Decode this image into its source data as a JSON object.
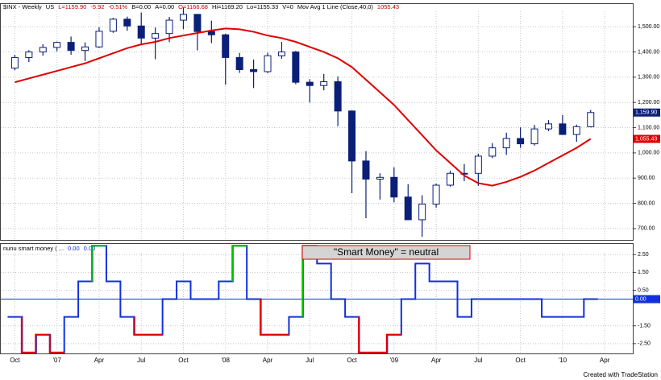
{
  "chart_data": [
    {
      "type": "candlestick",
      "header": [
        {
          "text": "$INX - Weekly",
          "color": "#000000"
        },
        {
          "text": "US",
          "color": "#000000"
        },
        {
          "text": "L=1159.90",
          "color": "#c00000"
        },
        {
          "text": "-5.92",
          "color": "#c00000"
        },
        {
          "text": "-0.51%",
          "color": "#c00000"
        },
        {
          "text": "B=0.00",
          "color": "#000000"
        },
        {
          "text": "A=0.00",
          "color": "#000000"
        },
        {
          "text": "O=1166.68",
          "color": "#c00000"
        },
        {
          "text": "Hi=1169.20",
          "color": "#000000"
        },
        {
          "text": "Lo=1155.33",
          "color": "#000000"
        },
        {
          "text": "V=0",
          "color": "#000000"
        },
        {
          "text": "Mov Avg 1 Line (Close,40,0)",
          "color": "#000000"
        },
        {
          "text": "1055.43",
          "color": "#c00000"
        }
      ],
      "x": [
        "2006-10",
        "2006-11",
        "2006-12",
        "2007-01",
        "2007-02",
        "2007-03",
        "2007-04",
        "2007-05",
        "2007-06",
        "2007-07",
        "2007-08",
        "2007-09",
        "2007-10",
        "2007-11",
        "2007-12",
        "2008-01",
        "2008-02",
        "2008-03",
        "2008-04",
        "2008-05",
        "2008-06",
        "2008-07",
        "2008-08",
        "2008-09",
        "2008-10",
        "2008-11",
        "2008-12",
        "2009-01",
        "2009-02",
        "2009-03",
        "2009-04",
        "2009-05",
        "2009-06",
        "2009-07",
        "2009-08",
        "2009-09",
        "2009-10",
        "2009-11",
        "2009-12",
        "2010-01",
        "2010-02",
        "2010-03"
      ],
      "open": [
        1336,
        1378,
        1400,
        1418,
        1438,
        1406,
        1420,
        1482,
        1530,
        1503,
        1455,
        1473,
        1526,
        1549,
        1481,
        1468,
        1378,
        1330,
        1322,
        1385,
        1400,
        1280,
        1267,
        1282,
        1166,
        968,
        896,
        903,
        825,
        735,
        797,
        872,
        919,
        919,
        987,
        1020,
        1057,
        1036,
        1095,
        1115,
        1073,
        1104
      ],
      "high": [
        1389,
        1407,
        1431,
        1441,
        1461,
        1438,
        1498,
        1535,
        1540,
        1556,
        1497,
        1539,
        1576,
        1550,
        1524,
        1472,
        1396,
        1370,
        1397,
        1440,
        1404,
        1292,
        1313,
        1303,
        1168,
        1007,
        919,
        943,
        876,
        832,
        878,
        930,
        956,
        997,
        1039,
        1080,
        1101,
        1111,
        1130,
        1150,
        1112,
        1170
      ],
      "low": [
        1327,
        1360,
        1385,
        1403,
        1389,
        1364,
        1416,
        1476,
        1484,
        1428,
        1371,
        1439,
        1490,
        1406,
        1435,
        1270,
        1317,
        1257,
        1316,
        1373,
        1272,
        1200,
        1248,
        1106,
        840,
        741,
        815,
        804,
        735,
        667,
        783,
        866,
        888,
        869,
        979,
        992,
        1020,
        1029,
        1086,
        1071,
        1044,
        1101
      ],
      "close": [
        1378,
        1400,
        1418,
        1438,
        1406,
        1420,
        1482,
        1530,
        1503,
        1455,
        1473,
        1526,
        1549,
        1481,
        1468,
        1378,
        1330,
        1322,
        1385,
        1400,
        1280,
        1267,
        1282,
        1166,
        968,
        896,
        903,
        825,
        735,
        797,
        872,
        919,
        919,
        987,
        1020,
        1057,
        1036,
        1095,
        1115,
        1073,
        1104,
        1159.9
      ],
      "up_color": "#ffffff",
      "down_color": "#0a1f78",
      "color": "#0a1f78",
      "last_label": "1,159.90",
      "last_label_color": "#0a1f78",
      "series": [
        {
          "name": "Mov Avg 1 Line (Close,40,0)",
          "color": "#e00000",
          "values": [
            1280,
            1295,
            1310,
            1325,
            1340,
            1355,
            1375,
            1395,
            1415,
            1430,
            1440,
            1455,
            1465,
            1475,
            1485,
            1493,
            1490,
            1480,
            1465,
            1455,
            1440,
            1420,
            1400,
            1375,
            1340,
            1290,
            1240,
            1190,
            1130,
            1070,
            1010,
            960,
            910,
            880,
            870,
            885,
            905,
            930,
            960,
            990,
            1020,
            1055.43
          ],
          "last_label": "1,055.43"
        }
      ],
      "ylim": [
        655,
        1590
      ],
      "yticks": [
        {
          "value": 700,
          "label": "700.00"
        },
        {
          "value": 800,
          "label": "800.00"
        },
        {
          "value": 900,
          "label": "900.00"
        },
        {
          "value": 1000,
          "label": "1,000.00"
        },
        {
          "value": 1100,
          "label": "1,100.00"
        },
        {
          "value": 1200,
          "label": "1,200.00"
        },
        {
          "value": 1300,
          "label": "1,300.00"
        },
        {
          "value": 1400,
          "label": "1,400.00"
        },
        {
          "value": 1500,
          "label": "1,500.00"
        }
      ],
      "grid": true
    },
    {
      "type": "line",
      "header": [
        {
          "text": "nunu smart money ( ...",
          "color": "#000000"
        },
        {
          "text": "0.00",
          "color": "#1030e0"
        },
        {
          "text": "0.00",
          "color": "#1030e0"
        }
      ],
      "series": [
        {
          "name": "nunu smart money",
          "color": "#1030e0",
          "values": [
            -1,
            -3,
            -2,
            -3,
            -1,
            1,
            3,
            1,
            -1,
            -2,
            -2,
            0,
            1,
            0,
            0,
            1,
            3,
            0,
            -2,
            -2,
            -1,
            3,
            2,
            0,
            -1,
            -3,
            -3,
            -2,
            0,
            2,
            1,
            1,
            -1,
            0,
            0,
            0,
            0,
            0,
            -1,
            -1,
            -1,
            0
          ]
        }
      ],
      "upper": 2.5,
      "upper_color": "#00c000",
      "lower": -1.5,
      "lower_color": "#e00000",
      "reference_line": 0,
      "reference_color": "#1030e0",
      "last_label": "0.00",
      "annotation": "\"Smart Money\" = neutral",
      "ylim": [
        -3.05,
        3.1
      ],
      "yticks": [
        {
          "value": 2.5,
          "label": "2.50"
        },
        {
          "value": 1.5,
          "label": "1.50"
        },
        {
          "value": 0.5,
          "label": "0.50"
        },
        {
          "value": 0,
          "label": "0.00"
        },
        {
          "value": -1.5,
          "label": "-1.50"
        },
        {
          "value": -2.5,
          "label": "-2.50"
        }
      ],
      "xlim": [
        "2006-09",
        "2010-06"
      ],
      "xticks": [
        {
          "value": "2006-10",
          "label": "Oct"
        },
        {
          "value": "2007-01",
          "label": "'07"
        },
        {
          "value": "2007-04",
          "label": "Apr"
        },
        {
          "value": "2007-07",
          "label": "Jul"
        },
        {
          "value": "2007-10",
          "label": "Oct"
        },
        {
          "value": "2008-01",
          "label": "'08"
        },
        {
          "value": "2008-04",
          "label": "Apr"
        },
        {
          "value": "2008-07",
          "label": "Jul"
        },
        {
          "value": "2008-10",
          "label": "Oct"
        },
        {
          "value": "2009-01",
          "label": "'09"
        },
        {
          "value": "2009-04",
          "label": "Apr"
        },
        {
          "value": "2009-07",
          "label": "Jul"
        },
        {
          "value": "2009-10",
          "label": "Oct"
        },
        {
          "value": "2010-01",
          "label": "'10"
        },
        {
          "value": "2010-04",
          "label": "Apr"
        }
      ],
      "grid": true
    },
    {
      "footer": "Created with TradeStation"
    }
  ]
}
